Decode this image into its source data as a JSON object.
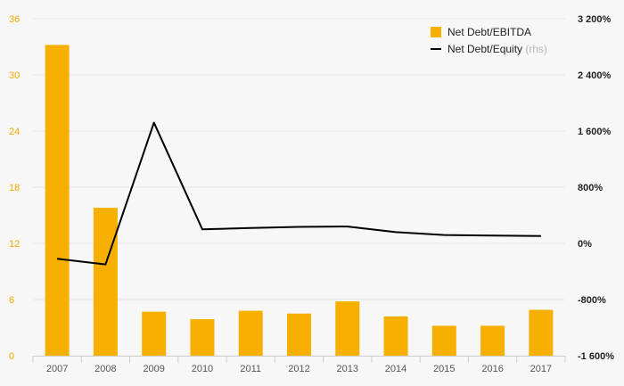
{
  "chart_data": {
    "type": "bar",
    "categories": [
      "2007",
      "2008",
      "2009",
      "2010",
      "2011",
      "2012",
      "2013",
      "2014",
      "2015",
      "2016",
      "2017"
    ],
    "series": [
      {
        "name": "Net Debt/EBITDA",
        "kind": "bar",
        "axis": "left",
        "color": "#f7b000",
        "values": [
          33.2,
          15.8,
          4.7,
          3.9,
          4.8,
          4.5,
          5.8,
          4.2,
          3.2,
          3.2,
          4.9
        ]
      },
      {
        "name": "Net Debt/Equity",
        "name_suffix": "(rhs)",
        "kind": "line",
        "axis": "right",
        "color": "#000000",
        "values": [
          -220,
          -300,
          1720,
          200,
          220,
          235,
          240,
          160,
          120,
          110,
          105
        ]
      }
    ],
    "y_left": {
      "min": 0,
      "max": 36,
      "ticks": [
        0,
        6,
        12,
        18,
        24,
        30,
        36
      ],
      "tick_labels": [
        "0",
        "6",
        "12",
        "18",
        "24",
        "30",
        "36"
      ]
    },
    "y_right": {
      "min": -1600,
      "max": 3200,
      "ticks": [
        -1600,
        -800,
        0,
        800,
        1600,
        2400,
        3200
      ],
      "tick_labels": [
        "-1 600%",
        "-800%",
        "0%",
        "800%",
        "1 600%",
        "2 400%",
        "3 200%"
      ]
    },
    "grid": true,
    "legend_position": "top-right",
    "title": "",
    "xlabel": "",
    "ylabel": ""
  }
}
